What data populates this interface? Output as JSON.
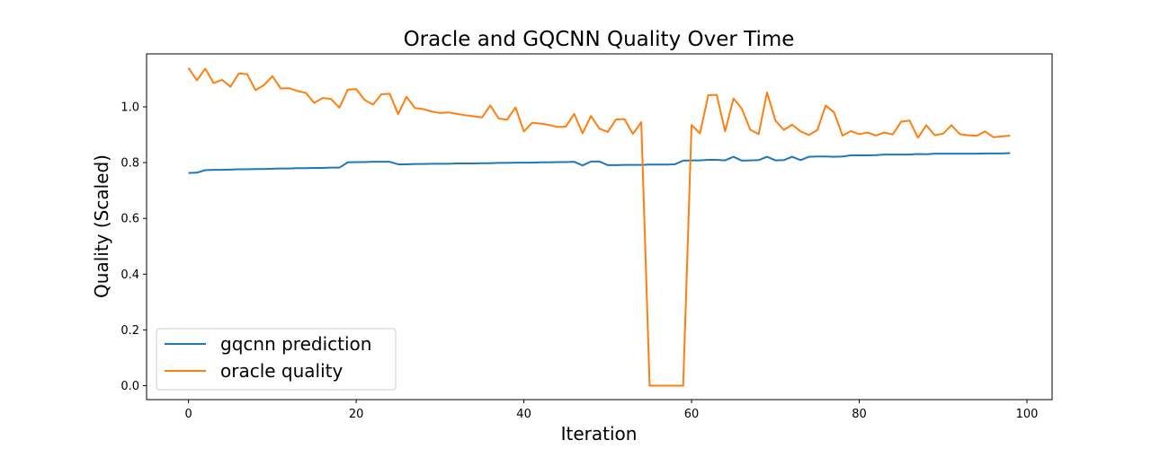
{
  "chart_data": {
    "type": "line",
    "title": "Oracle and GQCNN Quality Over Time",
    "xlabel": "Iteration",
    "ylabel": "Quality (Scaled)",
    "xlim": [
      -5,
      103
    ],
    "ylim": [
      -0.05,
      1.19
    ],
    "xticks": [
      0,
      20,
      40,
      60,
      80,
      100
    ],
    "yticks": [
      0.0,
      0.2,
      0.4,
      0.6,
      0.8,
      1.0
    ],
    "xtick_labels": [
      "0",
      "20",
      "40",
      "60",
      "80",
      "100"
    ],
    "ytick_labels": [
      "0.0",
      "0.2",
      "0.4",
      "0.6",
      "0.8",
      "1.0"
    ],
    "grid": false,
    "legend_position": "lower-left",
    "series": [
      {
        "name": "gqcnn prediction",
        "color": "#1f77b4",
        "x": [
          0,
          1,
          2,
          3,
          4,
          5,
          6,
          7,
          8,
          9,
          10,
          11,
          12,
          13,
          14,
          15,
          16,
          17,
          18,
          19,
          20,
          21,
          22,
          23,
          24,
          25,
          26,
          27,
          28,
          29,
          30,
          31,
          32,
          33,
          34,
          35,
          36,
          37,
          38,
          39,
          40,
          41,
          42,
          43,
          44,
          45,
          46,
          47,
          48,
          49,
          50,
          51,
          52,
          53,
          54,
          55,
          56,
          57,
          58,
          59,
          60,
          61,
          62,
          63,
          64,
          65,
          66,
          67,
          68,
          69,
          70,
          71,
          72,
          73,
          74,
          75,
          76,
          77,
          78,
          79,
          80,
          81,
          82,
          83,
          84,
          85,
          86,
          87,
          88,
          89,
          90,
          91,
          92,
          93,
          94,
          95,
          96,
          97,
          98
        ],
        "values": [
          0.763,
          0.764,
          0.773,
          0.774,
          0.774,
          0.775,
          0.776,
          0.776,
          0.777,
          0.777,
          0.778,
          0.779,
          0.779,
          0.78,
          0.78,
          0.781,
          0.781,
          0.782,
          0.782,
          0.801,
          0.802,
          0.802,
          0.803,
          0.803,
          0.803,
          0.794,
          0.794,
          0.795,
          0.795,
          0.796,
          0.796,
          0.796,
          0.797,
          0.797,
          0.797,
          0.798,
          0.798,
          0.799,
          0.799,
          0.8,
          0.8,
          0.8,
          0.801,
          0.801,
          0.802,
          0.802,
          0.803,
          0.79,
          0.804,
          0.804,
          0.791,
          0.791,
          0.792,
          0.792,
          0.792,
          0.793,
          0.793,
          0.793,
          0.794,
          0.807,
          0.808,
          0.808,
          0.81,
          0.81,
          0.808,
          0.821,
          0.807,
          0.808,
          0.809,
          0.821,
          0.808,
          0.809,
          0.821,
          0.809,
          0.821,
          0.822,
          0.822,
          0.821,
          0.822,
          0.826,
          0.826,
          0.826,
          0.827,
          0.829,
          0.829,
          0.829,
          0.829,
          0.831,
          0.83,
          0.832,
          0.832,
          0.832,
          0.832,
          0.832,
          0.832,
          0.833,
          0.833,
          0.833,
          0.834
        ]
      },
      {
        "name": "oracle quality",
        "color": "#ff7f0e",
        "x": [
          0,
          1,
          2,
          3,
          4,
          5,
          6,
          7,
          8,
          9,
          10,
          11,
          12,
          13,
          14,
          15,
          16,
          17,
          18,
          19,
          20,
          21,
          22,
          23,
          24,
          25,
          26,
          27,
          28,
          29,
          30,
          31,
          32,
          33,
          34,
          35,
          36,
          37,
          38,
          39,
          40,
          41,
          42,
          43,
          44,
          45,
          46,
          47,
          48,
          49,
          50,
          51,
          52,
          53,
          54,
          55,
          56,
          57,
          58,
          59,
          60,
          61,
          62,
          63,
          64,
          65,
          66,
          67,
          68,
          69,
          70,
          71,
          72,
          73,
          74,
          75,
          76,
          77,
          78,
          79,
          80,
          81,
          82,
          83,
          84,
          85,
          86,
          87,
          88,
          89,
          90,
          91,
          92,
          93,
          94,
          95,
          96,
          97,
          98
        ],
        "values": [
          1.14,
          1.095,
          1.137,
          1.085,
          1.097,
          1.072,
          1.12,
          1.117,
          1.06,
          1.078,
          1.11,
          1.066,
          1.067,
          1.057,
          1.05,
          1.014,
          1.032,
          1.028,
          0.997,
          1.062,
          1.064,
          1.025,
          1.008,
          1.045,
          1.047,
          0.974,
          1.036,
          0.996,
          0.992,
          0.983,
          0.978,
          0.98,
          0.975,
          0.97,
          0.966,
          0.962,
          1.005,
          0.958,
          0.954,
          0.998,
          0.912,
          0.943,
          0.94,
          0.935,
          0.928,
          0.929,
          0.975,
          0.905,
          0.967,
          0.922,
          0.91,
          0.955,
          0.956,
          0.903,
          0.945,
          0.0,
          0.0,
          0.0,
          0.0,
          0.0,
          0.935,
          0.905,
          1.042,
          1.043,
          0.912,
          1.03,
          0.993,
          0.918,
          0.902,
          1.052,
          0.951,
          0.917,
          0.936,
          0.912,
          0.899,
          0.917,
          1.005,
          0.98,
          0.897,
          0.913,
          0.902,
          0.908,
          0.897,
          0.908,
          0.901,
          0.947,
          0.951,
          0.889,
          0.934,
          0.898,
          0.904,
          0.934,
          0.902,
          0.898,
          0.896,
          0.912,
          0.891,
          0.894,
          0.897
        ]
      }
    ]
  }
}
